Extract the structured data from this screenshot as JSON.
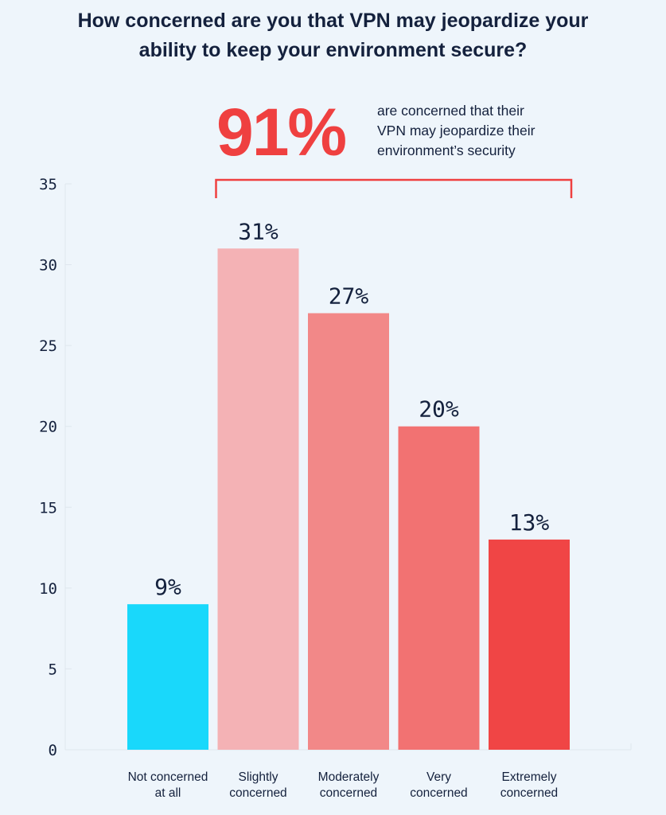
{
  "header": {
    "title_line1": "How concerned are you that VPN may jeopardize your",
    "title_line2": "ability to keep your environment secure?"
  },
  "callout": {
    "value": "91%",
    "text_line1": "are concerned that their",
    "text_line2": "VPN may jeopardize their",
    "text_line3": "environment’s security"
  },
  "colors": {
    "background": "#eef5fb",
    "accent": "#ef4040",
    "text": "#14213d",
    "bracket": "#ef4040"
  },
  "chart_data": {
    "type": "bar",
    "categories": [
      [
        "Not concerned",
        "at all"
      ],
      [
        "Slightly",
        "concerned"
      ],
      [
        "Moderately",
        "concerned"
      ],
      [
        "Very",
        "concerned"
      ],
      [
        "Extremely",
        "concerned"
      ]
    ],
    "values": [
      9,
      31,
      27,
      20,
      13
    ],
    "data_labels": [
      "9%",
      "31%",
      "27%",
      "20%",
      "13%"
    ],
    "bar_colors": [
      "#19d8fb",
      "#f4b2b5",
      "#f28888",
      "#f27272",
      "#f04545"
    ],
    "ylim": [
      0,
      35
    ],
    "yticks": [
      0,
      5,
      10,
      15,
      20,
      25,
      30,
      35
    ],
    "grid": false,
    "legend": "none"
  }
}
